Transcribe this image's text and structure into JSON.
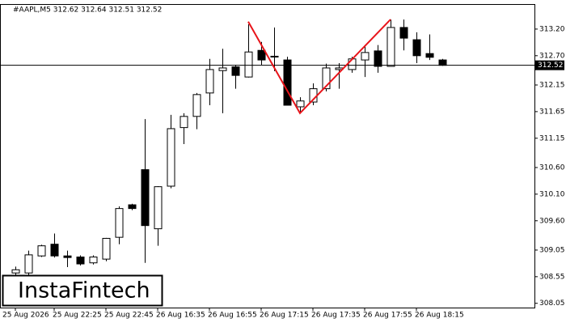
{
  "chart_data": {
    "type": "candlestick",
    "title": "#AAPL,M5  312.62 312.64 312.51 312.52",
    "categories": [
      "25 Aug 2026",
      null,
      null,
      "25 Aug 22:25",
      null,
      null,
      null,
      "25 Aug 22:45",
      null,
      null,
      null,
      "26 Aug 16:35",
      null,
      null,
      null,
      "26 Aug 16:55",
      null,
      null,
      null,
      "26 Aug 17:15",
      null,
      null,
      null,
      "26 Aug 17:35",
      null,
      null,
      null,
      "26 Aug 17:55",
      null,
      null,
      null,
      "26 Aug 18:15",
      null,
      null
    ],
    "open": [
      308.62,
      308.62,
      308.94,
      309.16,
      308.94,
      308.92,
      308.81,
      308.88,
      309.29,
      309.9,
      310.56,
      309.45,
      310.25,
      311.35,
      311.56,
      312.0,
      312.42,
      312.49,
      312.3,
      312.8,
      312.69,
      312.62,
      311.74,
      311.83,
      312.08,
      312.44,
      312.44,
      312.62,
      312.79,
      312.5,
      313.23,
      313.0,
      312.74,
      312.62
    ],
    "high": [
      308.74,
      309.04,
      309.15,
      309.36,
      309.04,
      308.95,
      308.95,
      309.28,
      309.87,
      309.92,
      311.51,
      310.25,
      311.59,
      311.62,
      312.0,
      312.64,
      312.83,
      312.53,
      313.29,
      312.96,
      313.23,
      312.68,
      311.92,
      312.18,
      312.55,
      312.56,
      312.68,
      312.9,
      312.9,
      313.38,
      313.38,
      313.14,
      313.1,
      312.64
    ],
    "low": [
      308.55,
      308.58,
      308.92,
      308.91,
      308.73,
      308.76,
      308.78,
      308.84,
      309.16,
      309.8,
      308.81,
      309.13,
      310.21,
      311.04,
      311.32,
      311.77,
      311.62,
      312.08,
      312.29,
      312.53,
      312.41,
      311.77,
      311.62,
      311.77,
      312.03,
      312.08,
      312.38,
      312.3,
      312.38,
      312.5,
      312.8,
      312.56,
      312.62,
      312.51
    ],
    "close": [
      308.68,
      308.96,
      309.13,
      308.94,
      308.91,
      308.79,
      308.92,
      309.27,
      309.83,
      309.83,
      309.51,
      310.24,
      311.33,
      311.56,
      311.97,
      312.44,
      312.47,
      312.33,
      312.77,
      312.62,
      312.68,
      311.77,
      311.85,
      312.08,
      312.47,
      312.47,
      312.64,
      312.76,
      312.5,
      313.23,
      313.03,
      312.7,
      312.67,
      312.52
    ],
    "up_color": "#ffffff",
    "down_color": "#000000",
    "ylim": [
      307.97,
      313.67
    ],
    "yticks": [
      {
        "value": 313.2,
        "label": "313.20"
      },
      {
        "value": 312.7,
        "label": "312.70"
      },
      312.15,
      311.65,
      311.15,
      {
        "value": 310.6,
        "label": "310.60"
      },
      {
        "value": 310.1,
        "label": "310.10"
      },
      {
        "value": 309.6,
        "label": "309.60"
      },
      309.05,
      308.55,
      308.05
    ],
    "current_price": 312.52,
    "pattern": {
      "color": "#e8141a",
      "x": [
        18,
        22,
        29
      ],
      "values": [
        313.34,
        311.62,
        313.38
      ]
    },
    "watermark": "InstaFintech"
  }
}
